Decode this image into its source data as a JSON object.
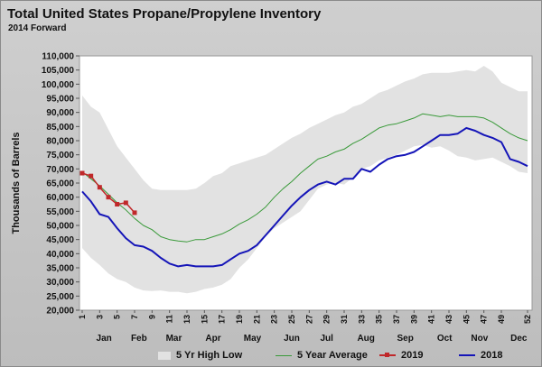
{
  "header": {
    "title": "Total United States Propane/Propylene Inventory",
    "subtitle": "2014 Forward"
  },
  "colors": {
    "band": "#e2e2e2",
    "avg": "#3a9a3a",
    "s2019": "#c0282a",
    "s2018": "#1515b8",
    "plot_bg": "#ffffff"
  },
  "chart_data": {
    "type": "line",
    "title": "Total United States Propane/Propylene Inventory",
    "subtitle": "2014 Forward",
    "xlabel": "",
    "ylabel": "Thousands of Barrels",
    "ylim": [
      20000,
      110000
    ],
    "xlim": [
      1,
      52
    ],
    "yticks": [
      20000,
      25000,
      30000,
      35000,
      40000,
      45000,
      50000,
      55000,
      60000,
      65000,
      70000,
      75000,
      80000,
      85000,
      90000,
      95000,
      100000,
      105000,
      110000
    ],
    "ytick_labels": [
      "20,000",
      "25,000",
      "30,000",
      "35,000",
      "40,000",
      "45,000",
      "50,000",
      "55,000",
      "60,000",
      "65,000",
      "70,000",
      "75,000",
      "80,000",
      "85,000",
      "90,000",
      "95,000",
      "100,000",
      "105,000",
      "110,000"
    ],
    "xticks": [
      1,
      3,
      5,
      7,
      9,
      11,
      13,
      15,
      17,
      19,
      21,
      23,
      25,
      27,
      29,
      31,
      33,
      35,
      37,
      39,
      41,
      43,
      45,
      47,
      49,
      52
    ],
    "months": [
      {
        "label": "Jan",
        "week": 3.5
      },
      {
        "label": "Feb",
        "week": 7.5
      },
      {
        "label": "Mar",
        "week": 11.5
      },
      {
        "label": "Apr",
        "week": 16
      },
      {
        "label": "May",
        "week": 20.5
      },
      {
        "label": "Jun",
        "week": 25
      },
      {
        "label": "Jul",
        "week": 29
      },
      {
        "label": "Aug",
        "week": 33.5
      },
      {
        "label": "Sep",
        "week": 38
      },
      {
        "label": "Oct",
        "week": 42.5
      },
      {
        "label": "Nov",
        "week": 46.5
      },
      {
        "label": "Dec",
        "week": 51
      }
    ],
    "legend_position": "bottom",
    "grid": false,
    "band": {
      "name": "5 Yr High Low",
      "weeks": [
        1,
        2,
        3,
        4,
        5,
        6,
        7,
        8,
        9,
        10,
        11,
        12,
        13,
        14,
        15,
        16,
        17,
        18,
        19,
        20,
        21,
        22,
        23,
        24,
        25,
        26,
        27,
        28,
        29,
        30,
        31,
        32,
        33,
        34,
        35,
        36,
        37,
        38,
        39,
        40,
        41,
        42,
        43,
        44,
        45,
        46,
        47,
        48,
        49,
        50,
        51,
        52
      ],
      "high": [
        96000,
        92000,
        90000,
        84000,
        78000,
        74000,
        70000,
        66000,
        63000,
        62500,
        62500,
        62500,
        62500,
        63000,
        65000,
        67500,
        68500,
        71000,
        72000,
        73000,
        74000,
        75000,
        77000,
        79000,
        81000,
        82500,
        84500,
        86000,
        87500,
        89000,
        90000,
        92000,
        93000,
        95000,
        97000,
        98000,
        99500,
        101000,
        102000,
        103500,
        104000,
        104000,
        104000,
        104500,
        105000,
        104500,
        106500,
        104500,
        100500,
        99000,
        97500,
        97500
      ],
      "low": [
        42000,
        38500,
        36000,
        33000,
        31000,
        30000,
        28000,
        27000,
        26800,
        27000,
        26500,
        26500,
        26000,
        26500,
        27500,
        28000,
        29000,
        31000,
        35000,
        38000,
        42000,
        46000,
        49000,
        51000,
        53000,
        55000,
        59000,
        63000,
        64500,
        65000,
        64500,
        67000,
        70000,
        71000,
        73000,
        74000,
        75000,
        76500,
        78000,
        78500,
        77500,
        78000,
        76500,
        74500,
        74000,
        73000,
        73500,
        74000,
        72500,
        71000,
        69000,
        68500
      ]
    },
    "series": [
      {
        "name": "5 Year Average",
        "x": [
          1,
          2,
          3,
          4,
          5,
          6,
          7,
          8,
          9,
          10,
          11,
          12,
          13,
          14,
          15,
          16,
          17,
          18,
          19,
          20,
          21,
          22,
          23,
          24,
          25,
          26,
          27,
          28,
          29,
          30,
          31,
          32,
          33,
          34,
          35,
          36,
          37,
          38,
          39,
          40,
          41,
          42,
          43,
          44,
          45,
          46,
          47,
          48,
          49,
          50,
          51,
          52
        ],
        "values": [
          69000,
          66500,
          64000,
          61000,
          58000,
          55500,
          52500,
          50000,
          48500,
          46000,
          45000,
          44500,
          44200,
          45000,
          45000,
          46000,
          47000,
          48500,
          50500,
          52000,
          54000,
          56500,
          60000,
          63000,
          65500,
          68500,
          71000,
          73500,
          74500,
          76000,
          77000,
          79000,
          80500,
          82500,
          84500,
          85500,
          86000,
          87000,
          88000,
          89500,
          89000,
          88500,
          89000,
          88500,
          88500,
          88500,
          88000,
          86500,
          84500,
          82500,
          81000,
          80000
        ]
      },
      {
        "name": "2019",
        "x": [
          1,
          2,
          3,
          4,
          5,
          6,
          7
        ],
        "values": [
          68500,
          67500,
          63500,
          60000,
          57500,
          58000,
          54500
        ]
      },
      {
        "name": "2018",
        "x": [
          1,
          2,
          3,
          4,
          5,
          6,
          7,
          8,
          9,
          10,
          11,
          12,
          13,
          14,
          15,
          16,
          17,
          18,
          19,
          20,
          21,
          22,
          23,
          24,
          25,
          26,
          27,
          28,
          29,
          30,
          31,
          32,
          33,
          34,
          35,
          36,
          37,
          38,
          39,
          40,
          41,
          42,
          43,
          44,
          45,
          46,
          47,
          48,
          49,
          50,
          51,
          52
        ],
        "values": [
          62000,
          58500,
          54000,
          53000,
          49000,
          45500,
          43000,
          42500,
          41000,
          38500,
          36500,
          35500,
          36000,
          35500,
          35500,
          35500,
          36000,
          38000,
          40000,
          41000,
          43000,
          46500,
          50000,
          53500,
          57000,
          60000,
          62500,
          64500,
          65500,
          64500,
          66500,
          66500,
          70000,
          69000,
          71500,
          73500,
          74500,
          75000,
          76000,
          78000,
          80000,
          82000,
          82000,
          82500,
          84500,
          83500,
          82000,
          81000,
          79500,
          73500,
          72500,
          71000
        ]
      }
    ]
  }
}
